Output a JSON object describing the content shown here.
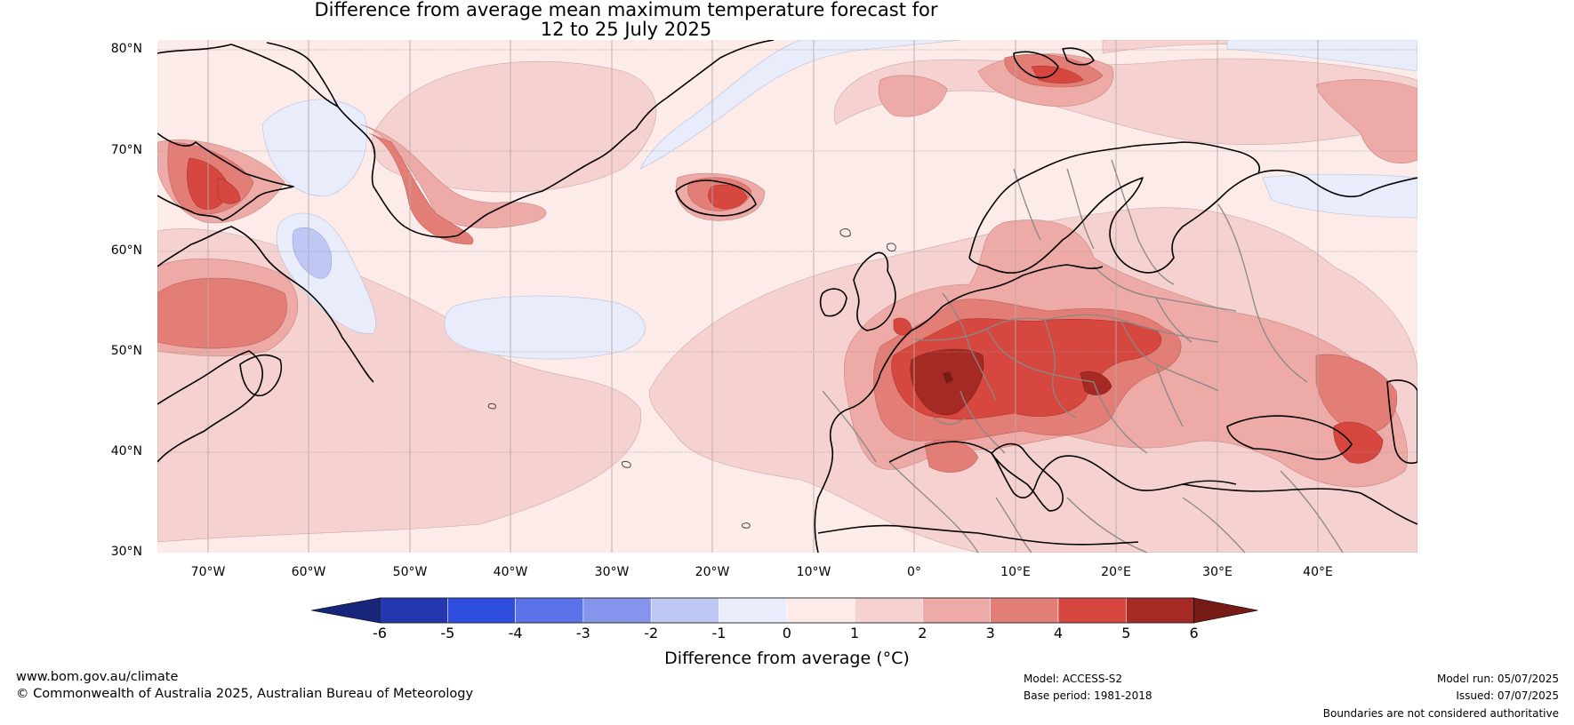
{
  "title": {
    "line1": "Difference from average mean maximum temperature forecast for",
    "line2": "12 to 25 July 2025"
  },
  "axes": {
    "latitude_labels": [
      "80°N",
      "70°N",
      "60°N",
      "50°N",
      "40°N",
      "30°N"
    ],
    "longitude_labels": [
      "70°W",
      "60°W",
      "50°W",
      "40°W",
      "30°W",
      "20°W",
      "10°W",
      "0°",
      "10°E",
      "20°E",
      "30°E",
      "40°E"
    ]
  },
  "colorbar": {
    "label": "Difference from average (°C)",
    "ticks": [
      "-6",
      "-5",
      "-4",
      "-3",
      "-2",
      "-1",
      "0",
      "1",
      "2",
      "3",
      "4",
      "5",
      "6"
    ],
    "colors": [
      "#17267a",
      "#2337b0",
      "#2e4ee0",
      "#5b73e8",
      "#8595ec",
      "#bfc7f4",
      "#e8ecfb",
      "#fcebe9",
      "#f5d1cf",
      "#edaaa7",
      "#e37e77",
      "#d6483f",
      "#a62a24",
      "#771b17"
    ]
  },
  "footer": {
    "website": "www.bom.gov.au/climate",
    "copyright": "© Commonwealth of Australia 2025, Australian Bureau of Meteorology",
    "model": "Model: ACCESS-S2",
    "base_period": "Base period: 1981-2018",
    "model_run": "Model run: 05/07/2025",
    "issued": "Issued: 07/07/2025",
    "disclaimer": "Boundaries are not considered authoritative"
  }
}
